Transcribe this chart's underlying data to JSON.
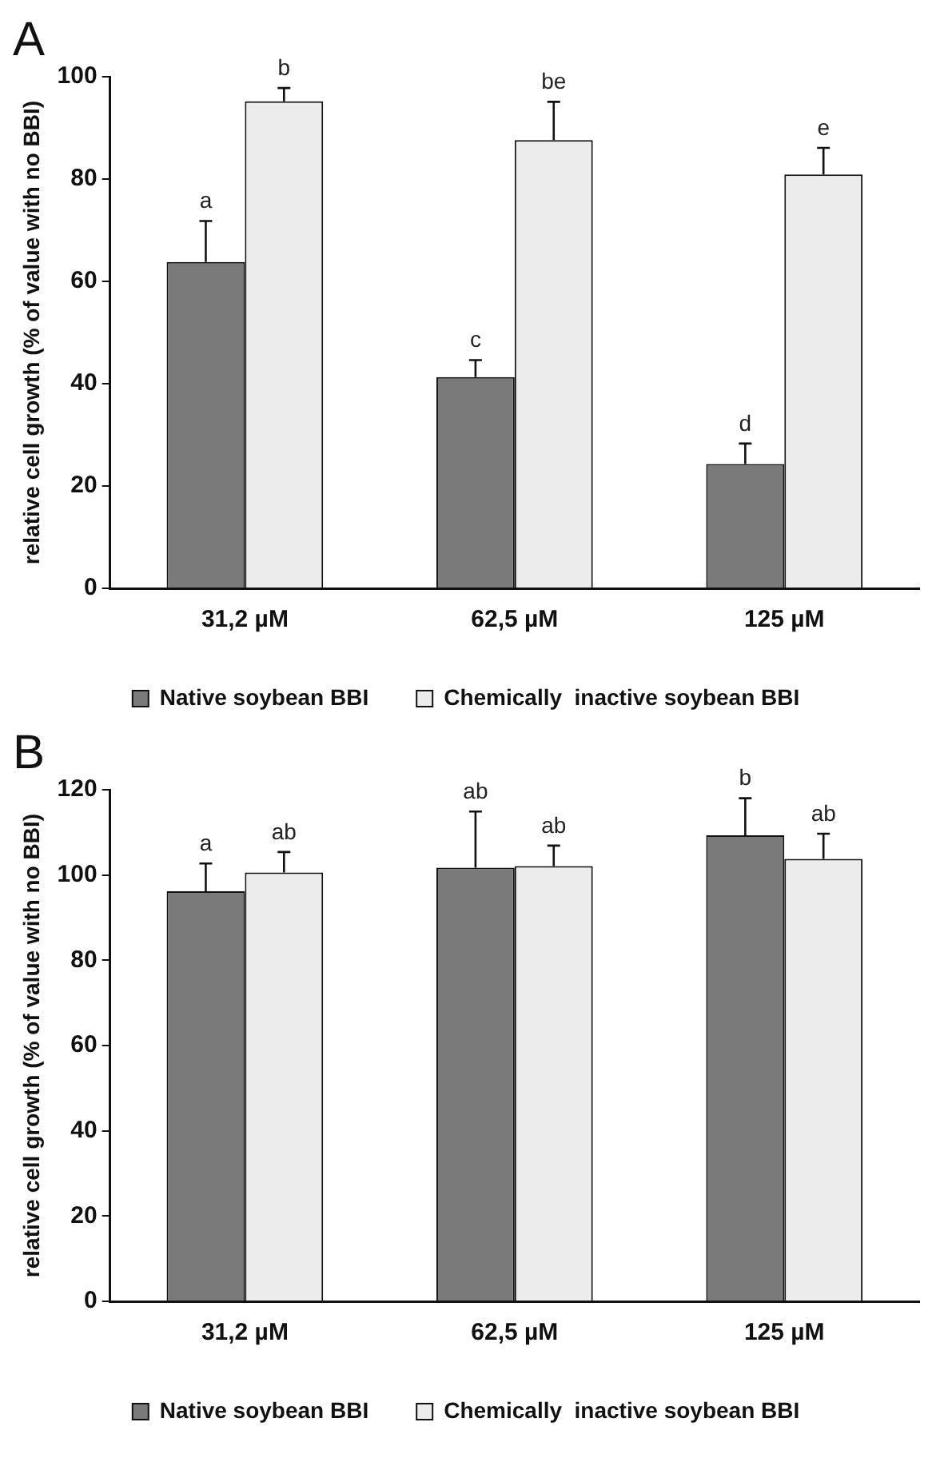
{
  "chart_data": [
    {
      "type": "bar",
      "title": "A",
      "categories": [
        "31,2 µM",
        "62,5 µM",
        "125 µM"
      ],
      "ylabel": "relative cell growth (% of value with no BBI)",
      "ylim": [
        0,
        100
      ],
      "yticks": [
        0,
        20,
        40,
        60,
        80,
        100
      ],
      "grid": false,
      "legend": "bottom",
      "series": [
        {
          "name": "Native soybean BBI",
          "color": "#7a7a7a",
          "values": [
            63.8,
            41.3,
            24.3
          ],
          "errors": [
            [
              63.8,
              71.8
            ],
            [
              41.3,
              44.6
            ],
            [
              24.3,
              28.3
            ]
          ]
        },
        {
          "name": "Chemically  inactive soybean BBI",
          "color": "#ececec",
          "values": [
            95.2,
            87.6,
            80.9
          ],
          "errors": [
            [
              95.2,
              97.8
            ],
            [
              87.6,
              95.1
            ],
            [
              80.9,
              86.1
            ]
          ]
        }
      ],
      "annotations": [
        "a",
        "b",
        "c",
        "be",
        "d",
        "e"
      ]
    },
    {
      "type": "bar",
      "title": "B",
      "categories": [
        "31,2 µM",
        "62,5 µM",
        "125 µM"
      ],
      "ylabel": "relative cell growth (% of value with no BBI)",
      "ylim": [
        0,
        120
      ],
      "yticks": [
        0,
        20,
        40,
        60,
        80,
        100,
        120
      ],
      "grid": false,
      "legend": "bottom",
      "series": [
        {
          "name": "Native soybean BBI",
          "color": "#7a7a7a",
          "values": [
            96.2,
            101.7,
            109.3
          ],
          "errors": [
            [
              96.2,
              102.7
            ],
            [
              101.7,
              114.9
            ],
            [
              109.3,
              118
            ]
          ]
        },
        {
          "name": "Chemically  inactive soybean BBI",
          "color": "#ececec",
          "values": [
            100.6,
            102.1,
            103.8
          ],
          "errors": [
            [
              100.6,
              105.4
            ],
            [
              102.1,
              106.9
            ],
            [
              103.8,
              109.7
            ]
          ]
        }
      ],
      "annotations": [
        "a",
        "ab",
        "ab",
        "ab",
        "b",
        "ab"
      ]
    }
  ]
}
